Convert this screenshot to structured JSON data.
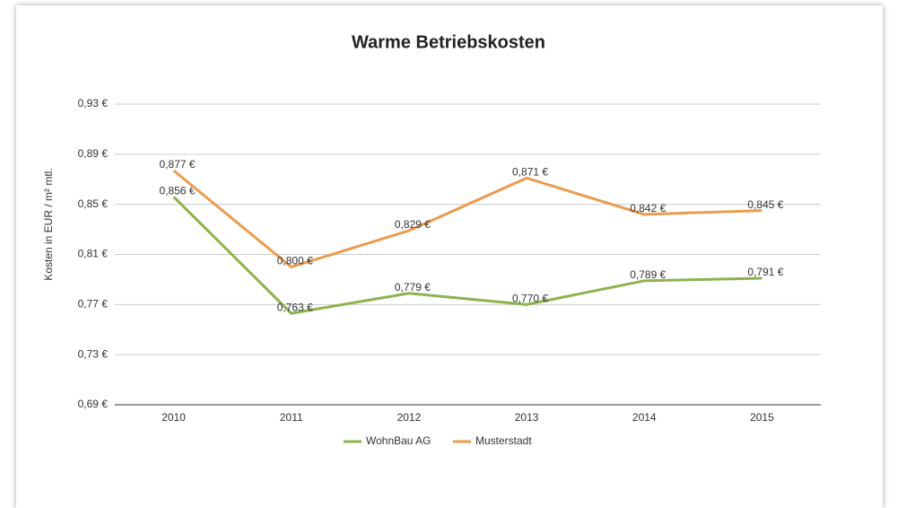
{
  "chart_data": {
    "type": "line",
    "title": "Warme Betriebskosten",
    "y_label": "Kosten in EUR / m² mtl.",
    "categories": [
      "2010",
      "2011",
      "2012",
      "2013",
      "2014",
      "2015"
    ],
    "series": [
      {
        "name": "WohnBau AG",
        "color": "#8db24e",
        "values": [
          0.856,
          0.763,
          0.779,
          0.77,
          0.789,
          0.791
        ],
        "value_labels": [
          "0,856 €",
          "0,763 €",
          "0,779 €",
          "0,770 €",
          "0,789 €",
          "0,791 €"
        ]
      },
      {
        "name": "Musterstadt",
        "color": "#eb9b4f",
        "values": [
          0.877,
          0.8,
          0.829,
          0.871,
          0.842,
          0.845
        ],
        "value_labels": [
          "0,877 €",
          "0,800 €",
          "0,829 €",
          "0,871 €",
          "0,842 €",
          "0,845 €"
        ]
      }
    ],
    "ylim": [
      0.69,
      0.93
    ],
    "yticks": [
      {
        "value": 0.69,
        "label": "0,69 €"
      },
      {
        "value": 0.73,
        "label": "0,73 €"
      },
      {
        "value": 0.77,
        "label": "0,77 €"
      },
      {
        "value": 0.81,
        "label": "0,81 €"
      },
      {
        "value": 0.85,
        "label": "0,85 €"
      },
      {
        "value": 0.89,
        "label": "0,89 €"
      },
      {
        "value": 0.93,
        "label": "0,93 €"
      }
    ],
    "grid": true,
    "legend": "bottom"
  }
}
